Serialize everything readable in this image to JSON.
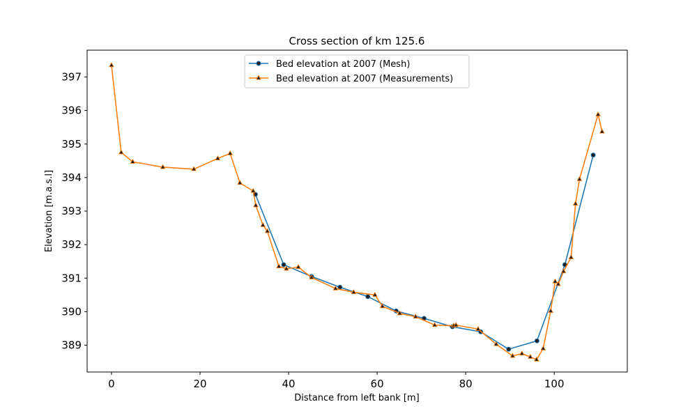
{
  "chart_data": {
    "type": "line",
    "title": "Cross section of km 125.6",
    "xlabel": "Distance from left bank [m]",
    "ylabel": "Elevation [m.a.s.l]",
    "xlim": [
      -5.5,
      116.5
    ],
    "ylim": [
      388.2,
      397.8
    ],
    "xticks": [
      0,
      20,
      40,
      60,
      80,
      100
    ],
    "yticks": [
      389,
      390,
      391,
      392,
      393,
      394,
      395,
      396,
      397
    ],
    "grid": false,
    "legend_position": "upper center",
    "series": [
      {
        "name": "Bed elevation at 2007 (Mesh)",
        "color": "#1f77b4",
        "marker": "circle",
        "x": [
          32.5,
          38.9,
          45.2,
          51.6,
          57.9,
          64.3,
          70.6,
          77.0,
          83.4,
          89.7,
          96.1,
          102.4,
          108.8
        ],
        "y": [
          393.5,
          391.4,
          391.05,
          390.73,
          390.45,
          390.02,
          389.8,
          389.55,
          389.4,
          388.88,
          389.13,
          391.4,
          394.67
        ]
      },
      {
        "name": "Bed elevation at 2007 (Measurements)",
        "color": "#ff7f0e",
        "marker": "triangle",
        "x": [
          0.0,
          2.2,
          4.8,
          11.6,
          18.6,
          24.0,
          26.8,
          29.0,
          32.0,
          32.6,
          34.2,
          35.2,
          37.8,
          39.5,
          42.2,
          45.2,
          50.6,
          54.7,
          59.5,
          61.2,
          65.1,
          68.7,
          73.0,
          77.3,
          77.8,
          82.8,
          86.9,
          90.6,
          92.7,
          94.6,
          96.0,
          97.5,
          99.2,
          100.2,
          100.9,
          102.1,
          103.8,
          104.8,
          105.7,
          109.9,
          110.8
        ],
        "y": [
          397.35,
          394.75,
          394.47,
          394.31,
          394.25,
          394.57,
          394.72,
          393.84,
          393.6,
          393.17,
          392.58,
          392.4,
          391.35,
          391.28,
          391.33,
          391.02,
          390.69,
          390.58,
          390.5,
          390.16,
          389.95,
          389.85,
          389.6,
          389.58,
          389.6,
          389.48,
          389.03,
          388.68,
          388.75,
          388.65,
          388.57,
          388.9,
          390.02,
          390.9,
          390.82,
          391.2,
          391.62,
          393.22,
          393.95,
          395.88,
          395.37
        ]
      }
    ]
  }
}
